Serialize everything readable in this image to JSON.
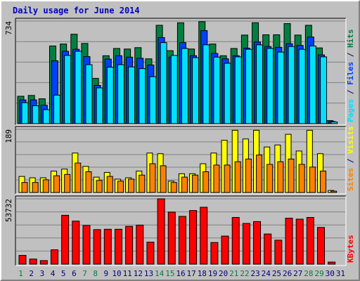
{
  "title": "Daily usage for June 2014",
  "colors": {
    "hits": "#008040",
    "files": "#0040ff",
    "pages": "#00e0ff",
    "visits": "#ffff00",
    "sites": "#ff8000",
    "kbytes": "#ff0000",
    "panel_bg": "#c0c0c0",
    "grid": "#808080",
    "weekend_label": "#008040",
    "weekday_label": "#000080"
  },
  "legend": {
    "top": [
      {
        "text": "Pages",
        "color": "#00e0ff"
      },
      {
        "text": " / ",
        "color": "#000080"
      },
      {
        "text": "Files",
        "color": "#0040ff"
      },
      {
        "text": " / ",
        "color": "#000080"
      },
      {
        "text": "Hits",
        "color": "#008040"
      }
    ],
    "middle": [
      {
        "text": "Sites",
        "color": "#ff8000"
      },
      {
        "text": " / ",
        "color": "#000080"
      },
      {
        "text": "Visits",
        "color": "#ffff00"
      }
    ],
    "bottom": [
      {
        "text": "KBytes",
        "color": "#ff0000"
      }
    ]
  },
  "chart_data": [
    {
      "type": "bar",
      "title": "Daily usage for June 2014",
      "ymax_label": "734",
      "ylim": [
        0,
        734
      ],
      "categories": [
        "1",
        "2",
        "3",
        "4",
        "5",
        "6",
        "7",
        "8",
        "9",
        "10",
        "11",
        "12",
        "13",
        "14",
        "15",
        "16",
        "17",
        "18",
        "19",
        "20",
        "21",
        "22",
        "23",
        "24",
        "25",
        "26",
        "27",
        "28",
        "29",
        "30",
        "31"
      ],
      "weekend_days": [
        "1",
        "7",
        "8",
        "14",
        "15",
        "21",
        "22",
        "28",
        "29"
      ],
      "series": [
        {
          "name": "Hits",
          "values": [
            196,
            202,
            178,
            556,
            570,
            640,
            574,
            324,
            486,
            538,
            534,
            544,
            464,
            704,
            522,
            722,
            534,
            730,
            570,
            486,
            538,
            634,
            722,
            636,
            636,
            716,
            634,
            704,
            542,
            22,
            0
          ]
        },
        {
          "name": "Files",
          "values": [
            170,
            170,
            132,
            450,
            518,
            532,
            480,
            274,
            462,
            486,
            476,
            468,
            420,
            616,
            476,
            580,
            486,
            666,
            502,
            464,
            486,
            540,
            584,
            552,
            546,
            572,
            560,
            620,
            492,
            15,
            0
          ]
        },
        {
          "name": "Pages",
          "values": [
            150,
            128,
            100,
            204,
            488,
            518,
            422,
            256,
            404,
            422,
            406,
            394,
            336,
            580,
            488,
            538,
            472,
            564,
            476,
            432,
            478,
            532,
            564,
            538,
            512,
            552,
            532,
            556,
            478,
            12,
            0
          ]
        }
      ]
    },
    {
      "type": "bar",
      "ymax_label": "189",
      "ylim": [
        0,
        189
      ],
      "categories": [
        "1",
        "2",
        "3",
        "4",
        "5",
        "6",
        "7",
        "8",
        "9",
        "10",
        "11",
        "12",
        "13",
        "14",
        "15",
        "16",
        "17",
        "18",
        "19",
        "20",
        "21",
        "22",
        "23",
        "24",
        "25",
        "26",
        "27",
        "28",
        "29",
        "30",
        "31"
      ],
      "series": [
        {
          "name": "Visits",
          "values": [
            48,
            44,
            44,
            64,
            70,
            118,
            78,
            46,
            60,
            40,
            44,
            64,
            118,
            116,
            34,
            56,
            56,
            86,
            118,
            156,
            186,
            160,
            186,
            136,
            142,
            174,
            124,
            186,
            116,
            6,
            0
          ]
        },
        {
          "name": "Sites",
          "values": [
            30,
            30,
            38,
            50,
            54,
            88,
            62,
            36,
            48,
            34,
            40,
            52,
            86,
            80,
            30,
            46,
            52,
            62,
            82,
            82,
            92,
            100,
            112,
            84,
            92,
            100,
            84,
            76,
            64,
            4,
            0
          ]
        }
      ]
    },
    {
      "type": "bar",
      "ymax_label": "53732",
      "ylim": [
        0,
        53732
      ],
      "categories": [
        "1",
        "2",
        "3",
        "4",
        "5",
        "6",
        "7",
        "8",
        "9",
        "10",
        "11",
        "12",
        "13",
        "14",
        "15",
        "16",
        "17",
        "18",
        "19",
        "20",
        "21",
        "22",
        "23",
        "24",
        "25",
        "26",
        "27",
        "28",
        "29",
        "30",
        "31"
      ],
      "series": [
        {
          "name": "KBytes",
          "values": [
            7200,
            4200,
            2900,
            11800,
            40200,
            35400,
            31800,
            28400,
            28700,
            28700,
            31100,
            32100,
            18100,
            53732,
            42800,
            39300,
            44100,
            46800,
            17800,
            23100,
            38400,
            33500,
            35000,
            24800,
            19700,
            37800,
            37000,
            38400,
            30200,
            1700,
            0
          ]
        }
      ]
    }
  ]
}
